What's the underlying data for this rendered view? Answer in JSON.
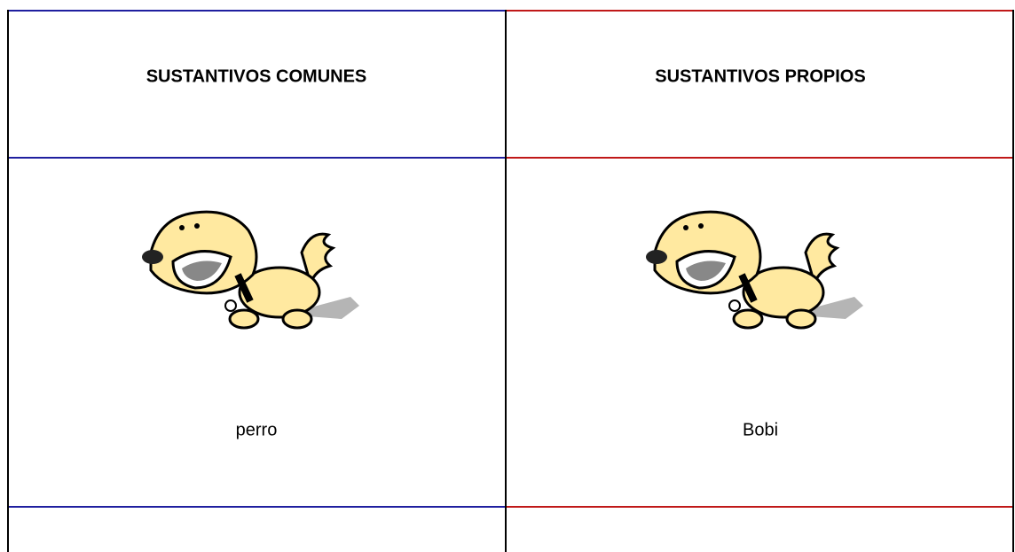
{
  "table": {
    "headers": [
      "SUSTANTIVOS COMUNES",
      "SUSTANTIVOS PROPIOS"
    ],
    "rows": [
      [
        "perro",
        "Bobi"
      ]
    ]
  }
}
